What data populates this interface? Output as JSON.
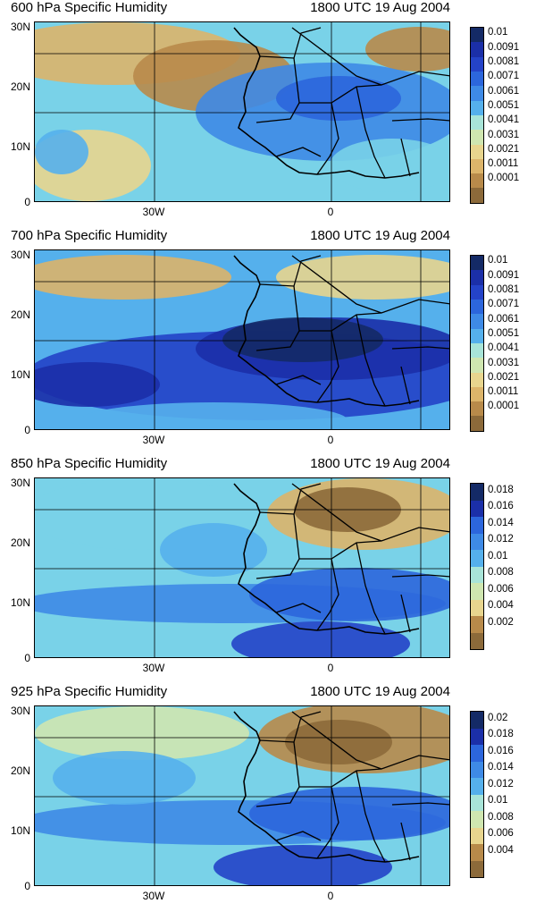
{
  "panels": [
    {
      "title": "600 hPa Specific Humidity",
      "time": "1800 UTC 19 Aug 2004",
      "colorbar_labels": [
        "0.01",
        "0.0091",
        "0.0081",
        "0.0071",
        "0.0061",
        "0.0051",
        "0.0041",
        "0.0031",
        "0.0021",
        "0.0011",
        "0.0001"
      ]
    },
    {
      "title": "700 hPa Specific Humidity",
      "time": "1800 UTC 19 Aug 2004",
      "colorbar_labels": [
        "0.01",
        "0.0091",
        "0.0081",
        "0.0071",
        "0.0061",
        "0.0051",
        "0.0041",
        "0.0031",
        "0.0021",
        "0.0011",
        "0.0001"
      ]
    },
    {
      "title": "850 hPa Specific Humidity",
      "time": "1800 UTC 19 Aug 2004",
      "colorbar_labels": [
        "0.018",
        "0.016",
        "0.014",
        "0.012",
        "0.01",
        "0.008",
        "0.006",
        "0.004",
        "0.002"
      ]
    },
    {
      "title": "925 hPa Specific Humidity",
      "time": "1800 UTC 19 Aug 2004",
      "colorbar_labels": [
        "0.02",
        "0.018",
        "0.016",
        "0.014",
        "0.012",
        "0.01",
        "0.008",
        "0.006",
        "0.004"
      ]
    }
  ],
  "axes": {
    "y_ticks": [
      "30N",
      "20N",
      "10N",
      "0"
    ],
    "x_ticks": [
      "30W",
      "0"
    ]
  },
  "colors": {
    "dry_brown": "#8c6a3a",
    "tan": "#e7c27a",
    "pale_yellow": "#f0e8a8",
    "light_cyan": "#8fe0e0",
    "sky_blue": "#4aa8e8",
    "blue": "#1e5ed6",
    "dark_blue": "#1a2aa8",
    "navy": "#102a6a"
  }
}
